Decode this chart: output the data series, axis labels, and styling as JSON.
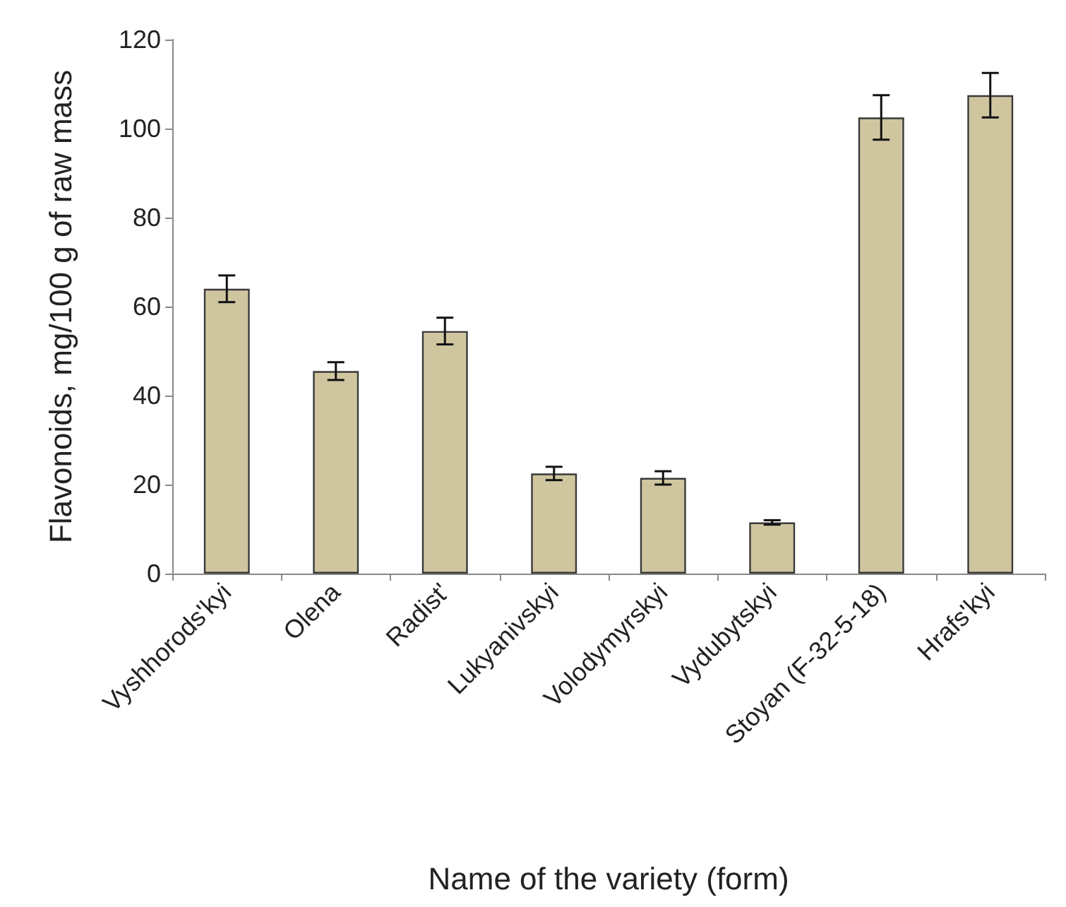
{
  "chart_data": {
    "type": "bar",
    "xlabel": "Name of the variety (form)",
    "ylabel": "Flavonoids, mg/100 g of raw mass",
    "categories": [
      "Vyshhorods'kyi",
      "Olena",
      "Radist'",
      "Lukyanivskyi",
      "Volodymyrskyi",
      "Vydubytskyi",
      "Stoyan (F-32-5-18)",
      "Hrafs'kyi"
    ],
    "values": [
      64,
      45.5,
      54.5,
      22.5,
      21.5,
      11.5,
      102.5,
      107.5
    ],
    "errors": [
      3,
      2,
      3,
      1.5,
      1.5,
      0.5,
      5,
      5
    ],
    "color": "#cfc6a0",
    "ylim": [
      0,
      120
    ],
    "yticks": [
      0,
      20,
      40,
      60,
      80,
      100,
      120
    ],
    "grid": false
  }
}
